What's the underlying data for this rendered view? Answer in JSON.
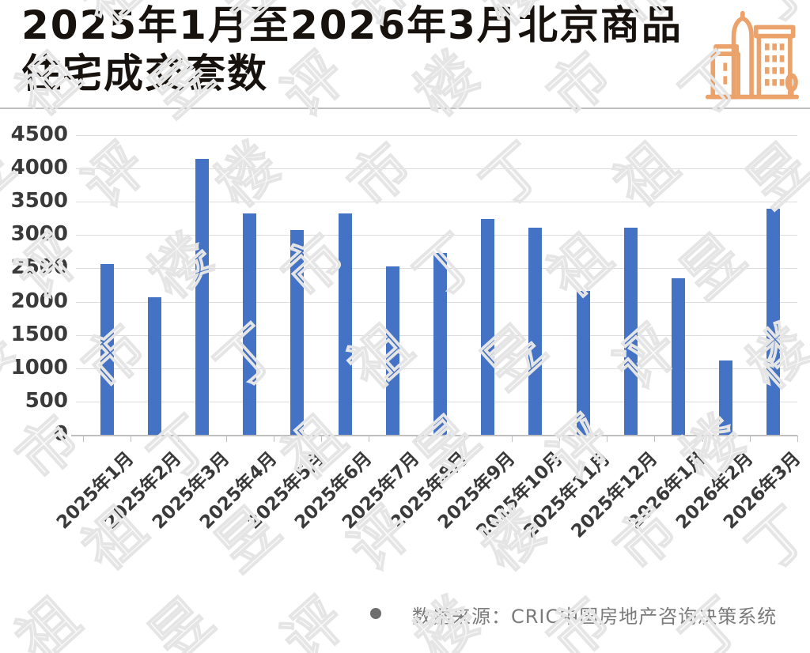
{
  "header": {
    "title": "2025年1月至2026年3月北京商品住宅成交套数",
    "brand_icon": "city-buildings-icon"
  },
  "chart_data": {
    "type": "bar",
    "title": "2025年1月至2026年3月北京商品住宅成交套数",
    "categories": [
      "2025年1月",
      "2025年2月",
      "2025年3月",
      "2025年4月",
      "2025年5月",
      "2025年6月",
      "2025年7月",
      "2025年8月",
      "2025年9月",
      "2025年10月",
      "2025年11月",
      "2025年12月",
      "2026年1月",
      "2026年2月",
      "2026年3月"
    ],
    "values": [
      2560,
      2070,
      4140,
      3320,
      3080,
      3330,
      2530,
      2730,
      3240,
      3110,
      2160,
      3110,
      2350,
      1120,
      3400
    ],
    "xlabel": "",
    "ylabel": "",
    "ylim": [
      0,
      4500
    ],
    "ytick_interval": 500,
    "ytick_labels": [
      "0",
      "500",
      "1000",
      "1500",
      "2000",
      "2500",
      "3000",
      "3500",
      "4000",
      "4500"
    ],
    "grid": true,
    "legend": "none",
    "bar_color": "#4472C4",
    "xtick_rotation_deg": 45
  },
  "footer": {
    "bullet_glyph": "●",
    "source_text": "数据来源：CRIC中国房地产咨询决策系统"
  },
  "watermark": {
    "text": "丁祖昱评楼市"
  },
  "colors": {
    "background": "#FFFFFF",
    "bar": "#4472C4",
    "accent": "#EBA36B",
    "grid": "#DCDCDC",
    "axis": "#BFBFBF",
    "tick_text": "#3A3A3A",
    "title_text": "#17120D",
    "source_text": "#7B7B7B",
    "divider": "#BDBDBD",
    "watermark": "#E5E5E5"
  }
}
